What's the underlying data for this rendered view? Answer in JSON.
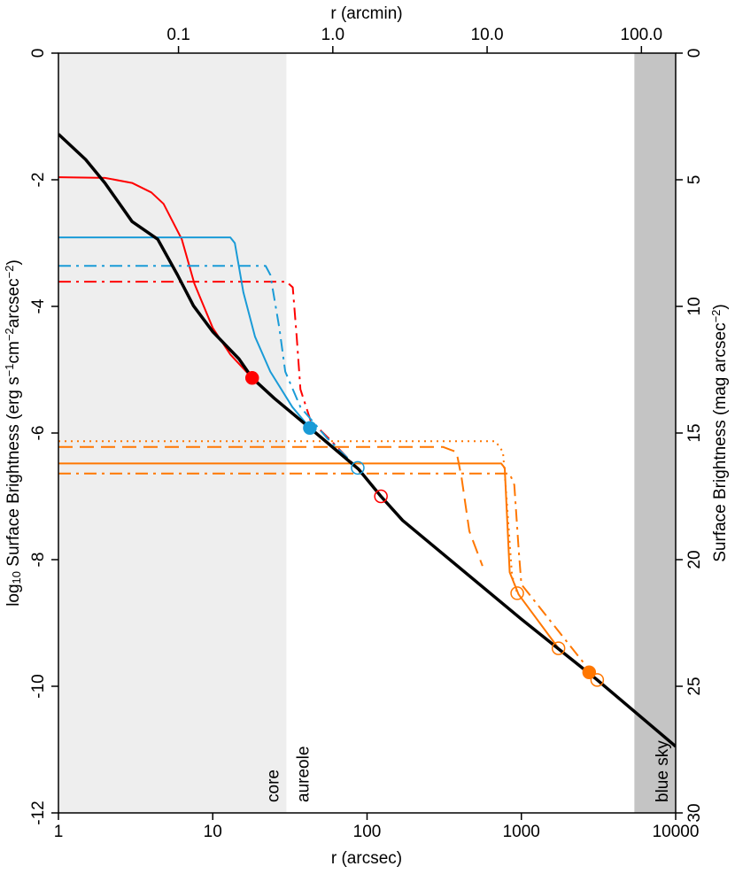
{
  "chart_data": {
    "type": "line",
    "xscale": "log",
    "xlabel": "r (arcsec)",
    "x2label": "r (arcmin)",
    "ylabel": {
      "parts": [
        "log",
        "10",
        " Surface Brightness (erg s",
        "−1",
        "cm",
        "−2",
        "arcsec",
        "−2",
        ")"
      ],
      "shift": [
        "base",
        "sub",
        "base",
        "sup",
        "base",
        "sup",
        "base",
        "sup",
        "base"
      ]
    },
    "y2label": {
      "parts": [
        "Surface Brightness (mag arcsec",
        "−2",
        ")"
      ],
      "shift": [
        "base",
        "sup",
        "base"
      ]
    },
    "xlim": [
      1,
      10000
    ],
    "xticks": [
      1,
      10,
      100,
      1000,
      10000
    ],
    "x2lim": [
      0.01667,
      166.7
    ],
    "x2ticks": [
      0.1,
      {
        "value": 1,
        "label": "1.0"
      },
      {
        "value": 10,
        "label": "10.0"
      },
      {
        "value": 100,
        "label": "100.0"
      }
    ],
    "ylim": [
      -12,
      0
    ],
    "yticks": [
      -12,
      -10,
      -8,
      -6,
      -4,
      -2,
      0
    ],
    "y2lim": [
      30,
      0
    ],
    "y2ticks": [
      30,
      25,
      20,
      15,
      10,
      5,
      0
    ],
    "regions": [
      {
        "xlim": [
          1,
          30
        ],
        "color": "#eeeeee",
        "label_inside": "core",
        "label_outside": "aureole"
      },
      {
        "xlim": [
          5400,
          10000
        ],
        "color": "#c4c4c4",
        "label_inside": "blue sky"
      }
    ],
    "series": [
      {
        "color": "#ff0000",
        "style": "solid",
        "width": 2,
        "x": [
          1,
          2,
          3,
          4,
          4.8,
          6.3,
          7.6,
          10,
          13,
          18
        ],
        "values": [
          -1.96,
          -1.97,
          -2.05,
          -2.2,
          -2.38,
          -2.94,
          -3.64,
          -4.34,
          -4.76,
          -5.13
        ]
      },
      {
        "color": "#ff0000",
        "style": "dashdot",
        "width": 2,
        "x": [
          1,
          30,
          33,
          35,
          37,
          43,
          60,
          90,
          123
        ],
        "values": [
          -3.61,
          -3.61,
          -3.7,
          -4.48,
          -5.31,
          -5.8,
          -6.15,
          -6.6,
          -7.0
        ]
      },
      {
        "color": "#1a9bd7",
        "style": "solid",
        "width": 2,
        "x": [
          1,
          13,
          13.9,
          15.8,
          18.8,
          23.6,
          32.8,
          42.6
        ],
        "values": [
          -2.91,
          -2.91,
          -3.0,
          -3.78,
          -4.48,
          -5.03,
          -5.59,
          -5.92
        ]
      },
      {
        "color": "#1a9bd7",
        "style": "dashdot",
        "width": 2,
        "x": [
          1,
          22,
          23.6,
          27,
          29.5,
          37,
          55,
          87
        ],
        "values": [
          -3.36,
          -3.36,
          -3.5,
          -4.34,
          -5.03,
          -5.59,
          -6.08,
          -6.55
        ]
      },
      {
        "color": "#ff7700",
        "style": "dotted",
        "width": 2,
        "x": [
          1,
          680,
          760,
          800,
          870,
          940
        ],
        "values": [
          -6.13,
          -6.13,
          -6.3,
          -6.99,
          -8.25,
          -8.53
        ]
      },
      {
        "color": "#ff7700",
        "style": "dashed",
        "width": 2,
        "x": [
          1,
          310,
          380,
          410,
          460,
          560
        ],
        "values": [
          -6.22,
          -6.22,
          -6.3,
          -6.71,
          -7.55,
          -8.1
        ]
      },
      {
        "color": "#ff7700",
        "style": "solid",
        "width": 2,
        "x": [
          1,
          740,
          780,
          840,
          960,
          1740
        ],
        "values": [
          -6.48,
          -6.48,
          -6.55,
          -8.2,
          -8.55,
          -9.4
        ]
      },
      {
        "color": "#ff7700",
        "style": "dashdot",
        "width": 2,
        "x": [
          1,
          840,
          900,
          960,
          1000,
          3100
        ],
        "values": [
          -6.64,
          -6.64,
          -6.82,
          -7.83,
          -8.39,
          -9.9
        ]
      },
      {
        "color": "#000000",
        "style": "solid",
        "width": 3.5,
        "x": [
          1,
          1.5,
          2,
          3,
          4.4,
          5.9,
          7.5,
          10,
          14.8,
          18,
          25,
          42.6,
          88,
          123,
          170,
          1000,
          3000,
          10000
        ],
        "values": [
          -1.28,
          -1.68,
          -2.05,
          -2.66,
          -2.94,
          -3.5,
          -3.99,
          -4.4,
          -4.83,
          -5.13,
          -5.45,
          -5.92,
          -6.57,
          -7.0,
          -7.38,
          -8.94,
          -9.87,
          -10.95
        ]
      }
    ],
    "markers": [
      {
        "x": 18,
        "y": -5.13,
        "color": "#ff0000",
        "filled": true
      },
      {
        "x": 123,
        "y": -7.0,
        "color": "#ff0000",
        "filled": false
      },
      {
        "x": 42.6,
        "y": -5.92,
        "color": "#1a9bd7",
        "filled": true
      },
      {
        "x": 87,
        "y": -6.55,
        "color": "#1a9bd7",
        "filled": false
      },
      {
        "x": 2750,
        "y": -9.78,
        "color": "#ff7700",
        "filled": true
      },
      {
        "x": 940,
        "y": -8.53,
        "color": "#ff7700",
        "filled": false
      },
      {
        "x": 1740,
        "y": -9.4,
        "color": "#ff7700",
        "filled": false
      },
      {
        "x": 3100,
        "y": -9.9,
        "color": "#ff7700",
        "filled": false
      }
    ]
  }
}
